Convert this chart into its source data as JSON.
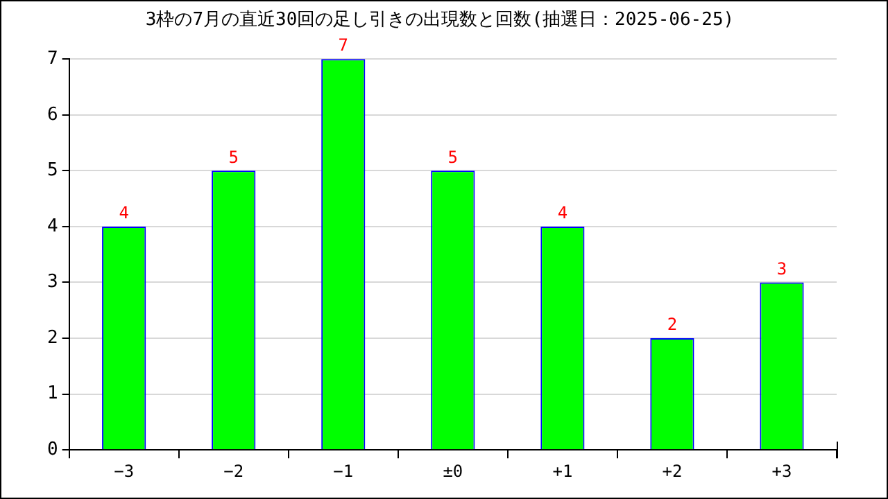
{
  "chart_data": {
    "type": "bar",
    "title": "3枠の7月の直近30回の足し引きの出現数と回数(抽選日：2025-06-25)",
    "categories": [
      "−3",
      "−2",
      "−1",
      "±0",
      "+1",
      "+2",
      "+3"
    ],
    "values": [
      4,
      5,
      7,
      5,
      4,
      2,
      3
    ],
    "color": "#00ff00",
    "ylim": [
      0,
      7
    ],
    "yticks": [
      0,
      1,
      2,
      3,
      4,
      5,
      6,
      7
    ],
    "grid": "y",
    "data_labels": true,
    "legend": false
  }
}
